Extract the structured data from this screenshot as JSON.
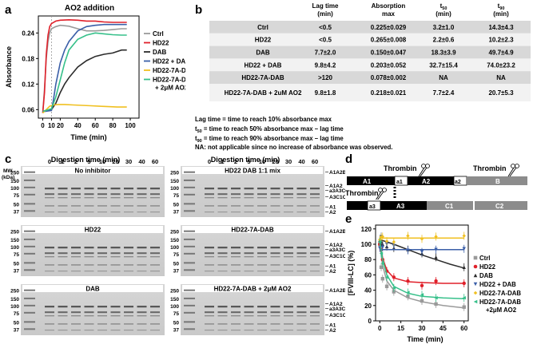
{
  "panel_a": {
    "letter": "a",
    "title": "AO2 addition",
    "chart_data": {
      "type": "line",
      "title": "AO2 addition",
      "xlabel": "Time (min)",
      "ylabel": "Absorbance",
      "xlim": [
        -5,
        110
      ],
      "ylim": [
        0.04,
        0.28
      ],
      "xticks": [
        0,
        10,
        20,
        40,
        60,
        80,
        100
      ],
      "yticks": [
        0.06,
        0.12,
        0.18,
        0.24
      ],
      "marker_line_x": 10,
      "series": [
        {
          "name": "Ctrl",
          "color": "#9a9a9a",
          "x": [
            0,
            2,
            4,
            6,
            8,
            10,
            15,
            20,
            30,
            40,
            50,
            60,
            70,
            80,
            90,
            96
          ],
          "y": [
            0.052,
            0.11,
            0.18,
            0.22,
            0.24,
            0.25,
            0.255,
            0.258,
            0.256,
            0.25,
            0.245,
            0.245,
            0.246,
            0.248,
            0.25,
            0.25
          ]
        },
        {
          "name": "HD22",
          "color": "#e0202a",
          "x": [
            0,
            2,
            4,
            6,
            8,
            10,
            15,
            20,
            30,
            40,
            50,
            60,
            70,
            80,
            90,
            96
          ],
          "y": [
            0.052,
            0.1,
            0.19,
            0.235,
            0.255,
            0.262,
            0.268,
            0.27,
            0.271,
            0.27,
            0.268,
            0.268,
            0.266,
            0.265,
            0.265,
            0.265
          ]
        },
        {
          "name": "DAB",
          "color": "#2b2b2b",
          "x": [
            0,
            10,
            15,
            20,
            25,
            30,
            40,
            50,
            60,
            70,
            80,
            90,
            96
          ],
          "y": [
            0.056,
            0.06,
            0.075,
            0.1,
            0.12,
            0.135,
            0.16,
            0.175,
            0.185,
            0.19,
            0.193,
            0.2,
            0.2
          ]
        },
        {
          "name": "HD22 + DAB",
          "color": "#3b5fa8",
          "x": [
            0,
            10,
            12,
            15,
            20,
            25,
            30,
            40,
            50,
            60,
            70,
            80,
            90,
            96
          ],
          "y": [
            0.055,
            0.058,
            0.08,
            0.12,
            0.17,
            0.2,
            0.22,
            0.245,
            0.255,
            0.258,
            0.26,
            0.26,
            0.26,
            0.26
          ]
        },
        {
          "name": "HD22-7A-DAB",
          "color": "#f0c020",
          "x": [
            0,
            4,
            8,
            12,
            18,
            25,
            35,
            45,
            55,
            65,
            75,
            85,
            96
          ],
          "y": [
            0.052,
            0.06,
            0.068,
            0.071,
            0.072,
            0.072,
            0.071,
            0.07,
            0.069,
            0.068,
            0.067,
            0.066,
            0.066
          ]
        },
        {
          "name": "HD22-7A-DAB + 2µM AO2",
          "color": "#36c08a",
          "x": [
            0,
            10,
            15,
            20,
            25,
            30,
            40,
            50,
            60,
            70,
            80,
            90,
            96
          ],
          "y": [
            0.056,
            0.062,
            0.09,
            0.13,
            0.17,
            0.2,
            0.225,
            0.235,
            0.24,
            0.238,
            0.236,
            0.235,
            0.235
          ]
        }
      ]
    },
    "legend": [
      {
        "label": "Ctrl",
        "color": "#9a9a9a"
      },
      {
        "label": "HD22",
        "color": "#e0202a"
      },
      {
        "label": "DAB",
        "color": "#2b2b2b"
      },
      {
        "label": "HD22 + DAB",
        "color": "#3b5fa8"
      },
      {
        "label": "HD22-7A-DAB",
        "color": "#f0c020"
      },
      {
        "label": "HD22-7A-DAB",
        "label2": "+ 2μM AO2",
        "color": "#36c08a"
      }
    ]
  },
  "panel_b": {
    "letter": "b",
    "headers": {
      "lag": "Lag time",
      "lag2": "(min)",
      "abs": "Absorption",
      "abs2": "max",
      "t50": "t",
      "t50_sub": "50",
      "t50_2": "(min)",
      "t90": "t",
      "t90_sub": "90",
      "t90_2": "(min)"
    },
    "rows": [
      {
        "name": "Ctrl",
        "lag": "<0.5",
        "abs": "0.225±0.029",
        "t50": "3.2±1.0",
        "t90": "14.3±4.3"
      },
      {
        "name": "HD22",
        "lag": "<0.5",
        "abs": "0.265±0.008",
        "t50": "2.2±0.6",
        "t90": "10.2±2.3"
      },
      {
        "name": "DAB",
        "lag": "7.7±2.0",
        "abs": "0.150±0.047",
        "t50": "18.3±3.9",
        "t90": "49.7±4.9"
      },
      {
        "name": "HD22 + DAB",
        "lag": "9.8±4.2",
        "abs": "0.203±0.052",
        "t50": "32.7±15.4",
        "t90": "74.0±23.2"
      },
      {
        "name": "HD22-7A-DAB",
        "lag": ">120",
        "abs": "0.078±0.002",
        "t50": "NA",
        "t90": "NA"
      },
      {
        "name": "HD22-7A-DAB + 2uM AO2",
        "lag": "9.8±1.8",
        "abs": "0.218±0.021",
        "t50": "7.7±2.4",
        "t90": "20.7±5.3"
      }
    ],
    "notes": {
      "n1": "Lag time = time to reach 10% absorbance max",
      "n2_pre": "t",
      "n2_sub": "50",
      "n2_post": " = time to reach 50% absorbance max – lag time",
      "n3_pre": "t",
      "n3_sub": "90",
      "n3_post": " = time to reach 90% absorbance max – lag time",
      "n4": "NA: not applicable since no increase of absorbance was observed."
    }
  },
  "panel_c": {
    "letter": "c",
    "mw_label": "MW",
    "kda_label": "(kDa)",
    "digestion_title": "Digestion time (min)",
    "lane_times": [
      "0",
      "1",
      "2",
      "5",
      "10",
      "20",
      "30",
      "40",
      "60"
    ],
    "mw_markers": [
      "250",
      "150",
      "100",
      "75",
      "50",
      "37"
    ],
    "gels": [
      {
        "title": "No inhibitor"
      },
      {
        "title": "HD22 DAB 1:1 mix"
      },
      {
        "title": "HD22"
      },
      {
        "title": "HD22-7A-DAB"
      },
      {
        "title": "DAB"
      },
      {
        "title": "HD22-7A-DAB + 2μM AO2"
      }
    ],
    "band_labels": [
      "A1A2B",
      "A1A2",
      "a3A3C1C2",
      "A3C1C2",
      "A1",
      "A2"
    ]
  },
  "panel_d": {
    "letter": "d",
    "thrombin": "Thrombin",
    "chain1": [
      "A1",
      "a1",
      "A2",
      "a2",
      "B"
    ],
    "chain2": [
      "a3",
      "A3",
      "C1",
      "C2"
    ]
  },
  "panel_e": {
    "letter": "e",
    "chart_data": {
      "type": "scatter",
      "xlabel": "Time (min)",
      "ylabel": "[FVIII-LC] (%)",
      "xlim": [
        -3,
        63
      ],
      "ylim": [
        0,
        125
      ],
      "xticks": [
        0,
        15,
        30,
        45,
        60
      ],
      "yticks": [
        0,
        20,
        40,
        60,
        80,
        100,
        120
      ],
      "series": [
        {
          "name": "Ctrl",
          "color": "#9a9a9a",
          "marker": "square",
          "x": [
            0,
            1,
            2,
            5,
            10,
            20,
            30,
            40,
            60
          ],
          "y": [
            100,
            70,
            55,
            45,
            38,
            32,
            26,
            22,
            18
          ],
          "fit": [
            [
              0,
              100
            ],
            [
              2,
              72
            ],
            [
              5,
              52
            ],
            [
              10,
              40
            ],
            [
              20,
              30
            ],
            [
              30,
              25
            ],
            [
              45,
              20
            ],
            [
              60,
              17
            ]
          ]
        },
        {
          "name": "HD22",
          "color": "#e0202a",
          "marker": "circle",
          "x": [
            0,
            1,
            2,
            5,
            10,
            20,
            30,
            40,
            60
          ],
          "y": [
            100,
            93,
            80,
            65,
            57,
            52,
            46,
            52,
            49
          ],
          "fit": [
            [
              0,
              100
            ],
            [
              2,
              82
            ],
            [
              5,
              66
            ],
            [
              10,
              56
            ],
            [
              20,
              51
            ],
            [
              30,
              50
            ],
            [
              45,
              49
            ],
            [
              60,
              49
            ]
          ]
        },
        {
          "name": "DAB",
          "color": "#2b2b2b",
          "marker": "triangle",
          "x": [
            0,
            1,
            2,
            5,
            10,
            20,
            30,
            40,
            60
          ],
          "y": [
            105,
            103,
            100,
            97,
            95,
            93,
            88,
            83,
            70
          ],
          "fit": [
            [
              0,
              106
            ],
            [
              10,
              100
            ],
            [
              20,
              93
            ],
            [
              30,
              86
            ],
            [
              40,
              80
            ],
            [
              50,
              74
            ],
            [
              60,
              69
            ]
          ]
        },
        {
          "name": "HD22 + DAB",
          "color": "#3b5fa8",
          "marker": "triangle-down",
          "x": [
            0,
            1,
            2,
            5,
            10,
            20,
            30,
            40,
            60
          ],
          "y": [
            95,
            110,
            96,
            100,
            98,
            92,
            90,
            93,
            94
          ],
          "fit": [
            [
              0,
              93
            ],
            [
              60,
              93
            ]
          ]
        },
        {
          "name": "HD22-7A-DAB",
          "color": "#f0c020",
          "marker": "diamond",
          "x": [
            0,
            1,
            2,
            5,
            10,
            20,
            30,
            40,
            60
          ],
          "y": [
            106,
            109,
            110,
            104,
            103,
            111,
            107,
            110,
            111
          ],
          "fit": [
            [
              0,
              108
            ],
            [
              60,
              108
            ]
          ]
        },
        {
          "name": "HD22-7A-DAB +2µM AO2",
          "color": "#36c08a",
          "marker": "triangle-left",
          "x": [
            0,
            1,
            2,
            5,
            10,
            20,
            30,
            40,
            60
          ],
          "y": [
            103,
            88,
            75,
            57,
            43,
            37,
            34,
            30,
            30
          ],
          "fit": [
            [
              0,
              103
            ],
            [
              2,
              80
            ],
            [
              5,
              60
            ],
            [
              10,
              45
            ],
            [
              20,
              36
            ],
            [
              30,
              32
            ],
            [
              45,
              30
            ],
            [
              60,
              29
            ]
          ]
        }
      ]
    },
    "legend": [
      {
        "label": "Ctrl",
        "color": "#9a9a9a",
        "marker": "square"
      },
      {
        "label": "HD22",
        "color": "#e0202a",
        "marker": "circle"
      },
      {
        "label": "DAB",
        "color": "#2b2b2b",
        "marker": "triangle"
      },
      {
        "label": "HD22 + DAB",
        "color": "#3b5fa8",
        "marker": "triangle-down"
      },
      {
        "label": "HD22-7A-DAB",
        "color": "#f0c020",
        "marker": "diamond"
      },
      {
        "label": "HD22-7A-DAB",
        "label2": "+2μM AO2",
        "color": "#36c08a",
        "marker": "triangle-left"
      }
    ]
  }
}
